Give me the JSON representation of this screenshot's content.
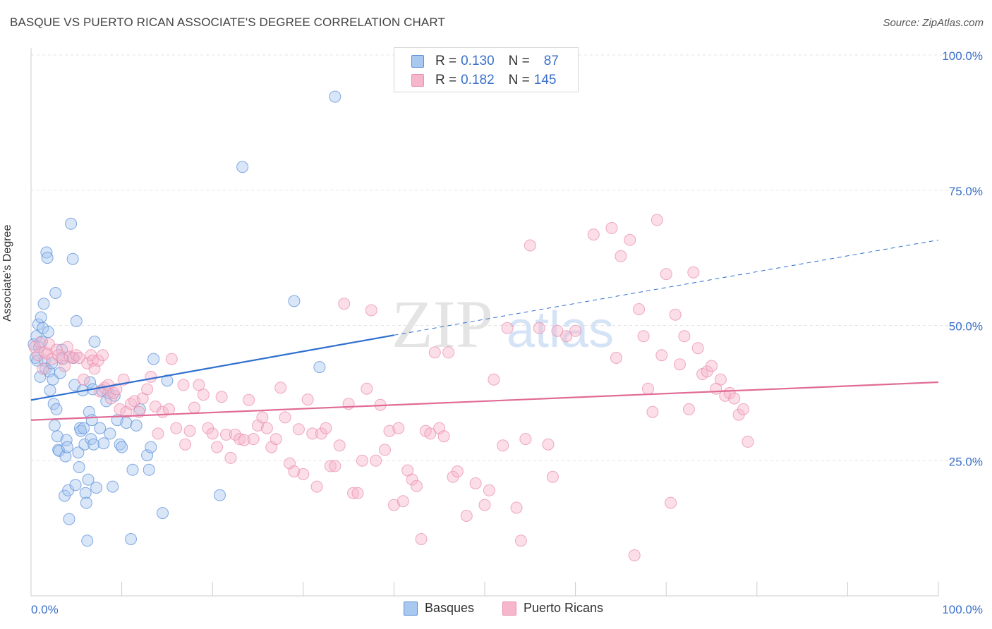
{
  "header": {
    "title": "BASQUE VS PUERTO RICAN ASSOCIATE'S DEGREE CORRELATION CHART",
    "source": "Source: ZipAtlas.com"
  },
  "watermark": {
    "zip": "ZIP",
    "atlas": "atlas"
  },
  "legend": {
    "r_label": "R =",
    "n_label": "N =",
    "rows": [
      {
        "r": "0.130",
        "n": "87"
      },
      {
        "r": "0.182",
        "n": "145"
      }
    ]
  },
  "colors": {
    "basque_fill": "#a9c8f0",
    "basque_stroke": "#5b8fd9",
    "basque_line": "#2f6fcf",
    "pr_fill": "#f6b6cb",
    "pr_stroke": "#e98fae",
    "pr_line": "#e06b96",
    "tick_label": "#3a6fc9"
  },
  "chart_data": {
    "type": "scatter",
    "title": "BASQUE VS PUERTO RICAN ASSOCIATE'S DEGREE CORRELATION CHART",
    "xlabel": "",
    "ylabel": "Associate's Degree",
    "xlim": [
      0,
      100
    ],
    "ylim": [
      0,
      100
    ],
    "x_tick_labels": [
      "0.0%",
      "100.0%"
    ],
    "y_ticks": [
      25,
      50,
      75,
      100
    ],
    "y_tick_labels": [
      "25.0%",
      "50.0%",
      "75.0%",
      "100.0%"
    ],
    "grid": true,
    "legend_position": "top-center",
    "series": [
      {
        "name": "Basques",
        "r": 0.13,
        "n": 87,
        "trend": {
          "x0": 0,
          "y0": 36.2,
          "x1": 40,
          "y1": 48.2,
          "dashed_to_x": 100,
          "dashed_to_y": 65.8
        },
        "points": [
          [
            0.3,
            46.5
          ],
          [
            0.5,
            44.0
          ],
          [
            0.6,
            48.0
          ],
          [
            0.7,
            43.5
          ],
          [
            0.8,
            50.2
          ],
          [
            0.9,
            46.0
          ],
          [
            1.0,
            40.5
          ],
          [
            1.1,
            51.5
          ],
          [
            1.2,
            47.0
          ],
          [
            1.3,
            49.5
          ],
          [
            1.4,
            54.0
          ],
          [
            1.5,
            43.5
          ],
          [
            1.6,
            42.0
          ],
          [
            1.7,
            63.5
          ],
          [
            1.8,
            62.5
          ],
          [
            1.9,
            48.8
          ],
          [
            2.0,
            41.5
          ],
          [
            2.1,
            38.0
          ],
          [
            2.3,
            43.0
          ],
          [
            2.4,
            40.0
          ],
          [
            2.5,
            35.5
          ],
          [
            2.6,
            31.5
          ],
          [
            2.7,
            56.0
          ],
          [
            2.8,
            34.5
          ],
          [
            2.9,
            29.5
          ],
          [
            3.0,
            27.0
          ],
          [
            3.1,
            26.8
          ],
          [
            3.2,
            41.2
          ],
          [
            3.4,
            45.5
          ],
          [
            3.5,
            43.8
          ],
          [
            3.7,
            18.5
          ],
          [
            3.8,
            25.8
          ],
          [
            3.9,
            28.8
          ],
          [
            4.0,
            27.5
          ],
          [
            4.1,
            19.5
          ],
          [
            4.2,
            14.2
          ],
          [
            4.4,
            68.8
          ],
          [
            4.6,
            62.3
          ],
          [
            4.7,
            44.0
          ],
          [
            4.8,
            39.0
          ],
          [
            4.9,
            20.5
          ],
          [
            5.0,
            50.8
          ],
          [
            5.2,
            26.5
          ],
          [
            5.3,
            23.8
          ],
          [
            5.4,
            31.0
          ],
          [
            5.5,
            30.5
          ],
          [
            5.7,
            38.0
          ],
          [
            5.8,
            31.0
          ],
          [
            5.9,
            28.0
          ],
          [
            6.0,
            19.0
          ],
          [
            6.1,
            17.2
          ],
          [
            6.2,
            10.2
          ],
          [
            6.3,
            21.5
          ],
          [
            6.4,
            34.0
          ],
          [
            6.5,
            39.5
          ],
          [
            6.6,
            29.0
          ],
          [
            6.7,
            32.5
          ],
          [
            6.8,
            38.2
          ],
          [
            6.9,
            28.0
          ],
          [
            7.0,
            47.0
          ],
          [
            7.2,
            20.0
          ],
          [
            7.6,
            31.0
          ],
          [
            7.8,
            38.0
          ],
          [
            8.0,
            28.2
          ],
          [
            8.3,
            36.0
          ],
          [
            8.5,
            37.5
          ],
          [
            8.7,
            30.0
          ],
          [
            9.0,
            20.2
          ],
          [
            9.2,
            37.0
          ],
          [
            9.5,
            32.5
          ],
          [
            9.8,
            28.0
          ],
          [
            10.0,
            27.5
          ],
          [
            10.5,
            32.0
          ],
          [
            11.0,
            10.5
          ],
          [
            11.2,
            23.3
          ],
          [
            11.6,
            31.5
          ],
          [
            12.0,
            34.5
          ],
          [
            12.8,
            26.0
          ],
          [
            13.0,
            23.3
          ],
          [
            13.2,
            27.5
          ],
          [
            13.5,
            43.8
          ],
          [
            14.5,
            15.3
          ],
          [
            15.0,
            39.8
          ],
          [
            20.8,
            18.6
          ],
          [
            23.3,
            79.3
          ],
          [
            29.0,
            54.5
          ],
          [
            31.8,
            42.3
          ],
          [
            33.5,
            92.3
          ]
        ]
      },
      {
        "name": "Puerto Ricans",
        "r": 0.182,
        "n": 145,
        "trend": {
          "x0": 0,
          "y0": 32.5,
          "x1": 100,
          "y1": 39.5
        },
        "points": [
          [
            0.4,
            46.0
          ],
          [
            0.8,
            44.5
          ],
          [
            1.0,
            46.8
          ],
          [
            1.3,
            42.0
          ],
          [
            1.5,
            45.0
          ],
          [
            1.8,
            44.8
          ],
          [
            2.0,
            46.5
          ],
          [
            2.3,
            43.8
          ],
          [
            2.8,
            45.5
          ],
          [
            3.0,
            44.5
          ],
          [
            3.4,
            44.0
          ],
          [
            3.7,
            42.5
          ],
          [
            4.0,
            46.0
          ],
          [
            4.3,
            44.2
          ],
          [
            4.6,
            44.0
          ],
          [
            5.0,
            44.5
          ],
          [
            5.3,
            44.0
          ],
          [
            5.8,
            40.0
          ],
          [
            6.2,
            43.0
          ],
          [
            6.6,
            44.5
          ],
          [
            6.8,
            43.5
          ],
          [
            7.0,
            42.0
          ],
          [
            7.4,
            43.5
          ],
          [
            7.6,
            37.8
          ],
          [
            7.9,
            44.5
          ],
          [
            8.1,
            38.5
          ],
          [
            8.5,
            39.0
          ],
          [
            8.8,
            36.5
          ],
          [
            9.1,
            37.5
          ],
          [
            9.4,
            38.2
          ],
          [
            9.8,
            34.5
          ],
          [
            10.2,
            40.0
          ],
          [
            10.5,
            34.0
          ],
          [
            11.0,
            35.5
          ],
          [
            11.4,
            36.0
          ],
          [
            11.9,
            34.0
          ],
          [
            12.3,
            36.5
          ],
          [
            12.8,
            38.2
          ],
          [
            13.2,
            40.5
          ],
          [
            13.7,
            35.0
          ],
          [
            14.0,
            30.0
          ],
          [
            14.5,
            34.0
          ],
          [
            15.2,
            34.5
          ],
          [
            15.5,
            43.8
          ],
          [
            16.0,
            31.0
          ],
          [
            16.8,
            39.0
          ],
          [
            17.0,
            28.0
          ],
          [
            17.5,
            30.5
          ],
          [
            18.0,
            34.8
          ],
          [
            18.5,
            39.0
          ],
          [
            19.0,
            37.2
          ],
          [
            19.5,
            31.0
          ],
          [
            20.0,
            30.0
          ],
          [
            20.5,
            27.5
          ],
          [
            21.0,
            36.8
          ],
          [
            21.5,
            29.8
          ],
          [
            22.0,
            25.5
          ],
          [
            22.5,
            29.8
          ],
          [
            23.0,
            29.0
          ],
          [
            23.5,
            28.8
          ],
          [
            24.0,
            36.2
          ],
          [
            24.5,
            29.0
          ],
          [
            25.0,
            31.5
          ],
          [
            25.5,
            33.0
          ],
          [
            26.0,
            31.0
          ],
          [
            26.5,
            27.5
          ],
          [
            27.0,
            29.0
          ],
          [
            27.5,
            38.5
          ],
          [
            28.0,
            33.0
          ],
          [
            28.5,
            24.5
          ],
          [
            29.0,
            23.0
          ],
          [
            29.5,
            30.8
          ],
          [
            30.0,
            22.5
          ],
          [
            30.5,
            36.3
          ],
          [
            31.0,
            30.0
          ],
          [
            31.5,
            20.2
          ],
          [
            32.0,
            30.0
          ],
          [
            32.5,
            31.0
          ],
          [
            33.0,
            24.0
          ],
          [
            33.5,
            24.0
          ],
          [
            34.0,
            27.8
          ],
          [
            34.5,
            54.0
          ],
          [
            35.0,
            35.5
          ],
          [
            35.5,
            19.0
          ],
          [
            36.0,
            19.0
          ],
          [
            36.5,
            25.0
          ],
          [
            37.0,
            38.3
          ],
          [
            37.5,
            52.8
          ],
          [
            38.0,
            25.0
          ],
          [
            38.5,
            35.3
          ],
          [
            39.0,
            27.0
          ],
          [
            39.5,
            30.5
          ],
          [
            40.0,
            16.8
          ],
          [
            40.5,
            31.0
          ],
          [
            41.0,
            17.5
          ],
          [
            41.5,
            23.2
          ],
          [
            42.0,
            21.5
          ],
          [
            42.5,
            20.3
          ],
          [
            43.0,
            10.5
          ],
          [
            43.5,
            30.5
          ],
          [
            44.0,
            30.0
          ],
          [
            44.5,
            45.0
          ],
          [
            45.0,
            31.0
          ],
          [
            45.5,
            29.5
          ],
          [
            46.0,
            45.0
          ],
          [
            46.5,
            22.0
          ],
          [
            47.0,
            23.0
          ],
          [
            48.0,
            14.8
          ],
          [
            49.0,
            20.8
          ],
          [
            50.0,
            16.8
          ],
          [
            50.5,
            19.5
          ],
          [
            51.0,
            40.0
          ],
          [
            52.0,
            27.8
          ],
          [
            52.5,
            49.5
          ],
          [
            53.5,
            16.3
          ],
          [
            54.0,
            10.2
          ],
          [
            54.5,
            29.0
          ],
          [
            55.0,
            64.8
          ],
          [
            56.0,
            49.5
          ],
          [
            57.0,
            28.0
          ],
          [
            57.5,
            22.0
          ],
          [
            58.0,
            49.0
          ],
          [
            59.0,
            48.0
          ],
          [
            60.0,
            49.0
          ],
          [
            62.0,
            66.8
          ],
          [
            64.0,
            68.0
          ],
          [
            64.5,
            44.0
          ],
          [
            65.0,
            62.8
          ],
          [
            66.0,
            65.8
          ],
          [
            66.5,
            7.5
          ],
          [
            67.0,
            53.0
          ],
          [
            67.5,
            48.0
          ],
          [
            68.0,
            38.3
          ],
          [
            68.5,
            34.0
          ],
          [
            69.0,
            69.5
          ],
          [
            69.5,
            44.5
          ],
          [
            70.0,
            59.5
          ],
          [
            70.5,
            17.2
          ],
          [
            71.0,
            52.0
          ],
          [
            71.5,
            42.8
          ],
          [
            72.0,
            48.0
          ],
          [
            72.5,
            34.5
          ],
          [
            73.0,
            59.8
          ],
          [
            73.5,
            45.8
          ],
          [
            74.0,
            41.0
          ],
          [
            74.5,
            41.5
          ],
          [
            75.0,
            42.5
          ],
          [
            75.5,
            38.3
          ],
          [
            76.0,
            40.0
          ],
          [
            76.5,
            37.0
          ],
          [
            77.0,
            37.5
          ],
          [
            77.5,
            36.5
          ],
          [
            78.0,
            33.5
          ],
          [
            78.5,
            34.5
          ],
          [
            79.0,
            28.5
          ]
        ]
      }
    ]
  },
  "bottom_legend": [
    {
      "label": "Basques"
    },
    {
      "label": "Puerto Ricans"
    }
  ]
}
